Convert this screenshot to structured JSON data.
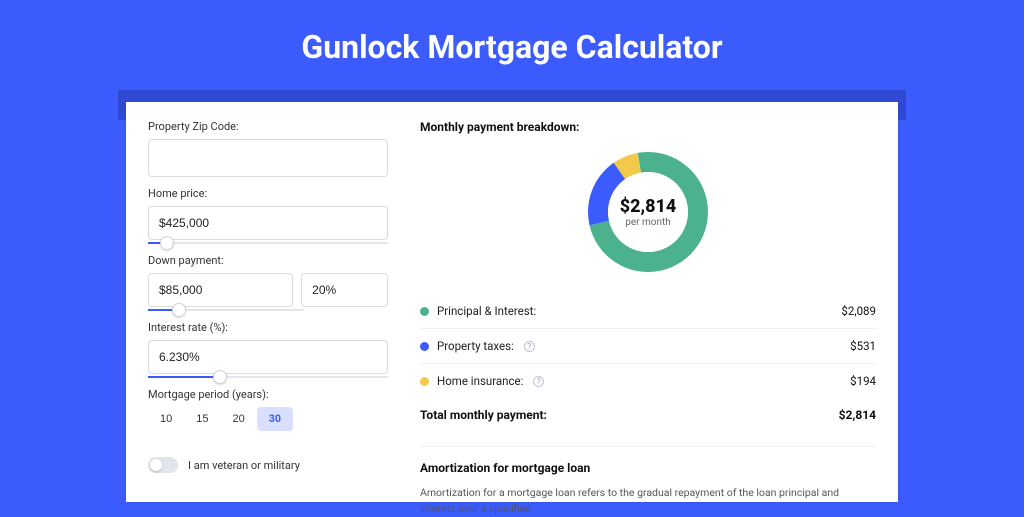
{
  "page": {
    "title": "Gunlock Mortgage Calculator",
    "background_color": "#3b5bfd",
    "shadow_color": "#2f49d4",
    "card_background": "#ffffff"
  },
  "form": {
    "zip": {
      "label": "Property Zip Code:",
      "value": ""
    },
    "home_price": {
      "label": "Home price:",
      "value": "$425,000",
      "slider_pct": 8
    },
    "down_payment": {
      "label": "Down payment:",
      "value": "$85,000",
      "pct_value": "20%",
      "slider_pct": 20
    },
    "interest_rate": {
      "label": "Interest rate (%):",
      "value": "6.230%",
      "slider_pct": 30
    },
    "mortgage_period": {
      "label": "Mortgage period (years):",
      "options": [
        "10",
        "15",
        "20",
        "30"
      ],
      "selected": "30"
    },
    "veteran": {
      "label": "I am veteran or military",
      "on": false
    }
  },
  "breakdown": {
    "title": "Monthly payment breakdown:",
    "center_amount": "$2,814",
    "center_sub": "per month",
    "donut": {
      "segments": [
        {
          "label": "Principal & Interest:",
          "value": "$2,089",
          "color": "#4cb28d",
          "pct": 74.2
        },
        {
          "label": "Property taxes:",
          "value": "$531",
          "color": "#3b5bfd",
          "pct": 18.9,
          "info": true
        },
        {
          "label": "Home insurance:",
          "value": "$194",
          "color": "#f3c94b",
          "pct": 6.9,
          "info": true
        }
      ],
      "ring_width": 20
    },
    "total": {
      "label": "Total monthly payment:",
      "value": "$2,814"
    }
  },
  "amortization": {
    "title": "Amortization for mortgage loan",
    "body": "Amortization for a mortgage loan refers to the gradual repayment of the loan principal and interest over a specified"
  }
}
